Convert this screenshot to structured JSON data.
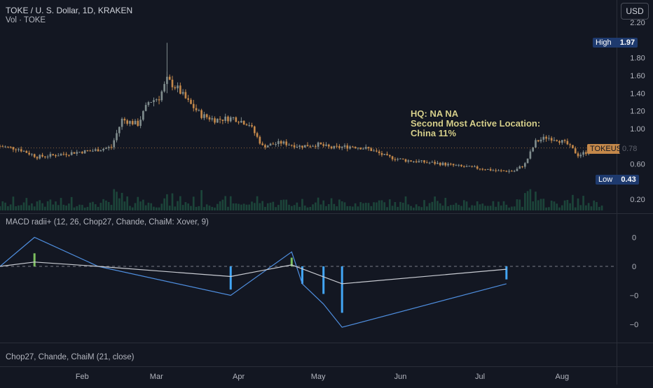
{
  "header": {
    "symbol_line": "TOKE / U. S. Dollar, 1D, KRAKEN",
    "volume_line": "Vol · TOKE"
  },
  "currency_button": "USD",
  "price_axis": {
    "ticks": [
      "2.20",
      "1.80",
      "1.60",
      "1.40",
      "1.20",
      "1.00",
      "0.60",
      "0.20"
    ],
    "high_label": "High",
    "high_value": "1.97",
    "low_label": "Low",
    "low_value": "0.43",
    "symbol_tag": "TOKEUSD",
    "last_value": "0.78"
  },
  "annotation": {
    "line1": "HQ: NA NA",
    "line2": "Second Most Active Location:",
    "line3": "China 11%"
  },
  "macd_pane": {
    "title": "MACD radii+ (12, 26, Chop27, Chande, ChaiM: Xover, 9)",
    "ticks": [
      "0",
      "0",
      "−0",
      "−0"
    ]
  },
  "chop_pane": {
    "title": "Chop27, Chande, ChaiM (21, close)"
  },
  "time_axis": {
    "labels": [
      "Feb",
      "Mar",
      "Apr",
      "May",
      "Jun",
      "Jul",
      "Aug"
    ]
  },
  "colors": {
    "background": "#131722",
    "up": "#7f8c8d",
    "down": "#c4884a",
    "macd_line": "#4f8fe0",
    "signal_line": "#c9ccd3",
    "hist_neg": "#42a5f5",
    "hist_pos": "#7cbf5f",
    "volume": "#1f4d3e"
  },
  "chart_data": [
    {
      "type": "candlestick",
      "title": "TOKE / U. S. Dollar, 1D, KRAKEN",
      "ylim": [
        0.1,
        2.25
      ],
      "x_range": [
        "2023-01-01",
        "2023-08-21"
      ],
      "y_ticks": [
        2.2,
        1.8,
        1.6,
        1.4,
        1.2,
        1.0,
        0.6,
        0.2
      ],
      "high": 1.97,
      "low": 0.43,
      "last": 0.78,
      "close_path": [
        [
          "2023-01-01",
          0.8
        ],
        [
          "2023-01-08",
          0.77
        ],
        [
          "2023-01-15",
          0.68
        ],
        [
          "2023-01-22",
          0.7
        ],
        [
          "2023-01-29",
          0.73
        ],
        [
          "2023-02-05",
          0.75
        ],
        [
          "2023-02-12",
          0.79
        ],
        [
          "2023-02-16",
          1.1
        ],
        [
          "2023-02-22",
          1.05
        ],
        [
          "2023-02-26",
          1.3
        ],
        [
          "2023-03-02",
          1.35
        ],
        [
          "2023-03-05",
          1.55
        ],
        [
          "2023-03-09",
          1.45
        ],
        [
          "2023-03-13",
          1.3
        ],
        [
          "2023-03-18",
          1.15
        ],
        [
          "2023-03-23",
          1.1
        ],
        [
          "2023-03-30",
          1.12
        ],
        [
          "2023-04-05",
          1.05
        ],
        [
          "2023-04-10",
          0.8
        ],
        [
          "2023-04-17",
          0.84
        ],
        [
          "2023-04-24",
          0.8
        ],
        [
          "2023-05-01",
          0.82
        ],
        [
          "2023-05-06",
          0.78
        ],
        [
          "2023-05-14",
          0.8
        ],
        [
          "2023-05-20",
          0.77
        ],
        [
          "2023-05-27",
          0.68
        ],
        [
          "2023-06-03",
          0.64
        ],
        [
          "2023-06-10",
          0.62
        ],
        [
          "2023-06-17",
          0.6
        ],
        [
          "2023-06-24",
          0.57
        ],
        [
          "2023-07-01",
          0.55
        ],
        [
          "2023-07-08",
          0.52
        ],
        [
          "2023-07-14",
          0.52
        ],
        [
          "2023-07-18",
          0.6
        ],
        [
          "2023-07-22",
          0.85
        ],
        [
          "2023-07-26",
          0.9
        ],
        [
          "2023-07-30",
          0.88
        ],
        [
          "2023-08-03",
          0.82
        ],
        [
          "2023-08-07",
          0.7
        ],
        [
          "2023-08-12",
          0.75
        ],
        [
          "2023-08-16",
          0.78
        ]
      ]
    },
    {
      "type": "line",
      "title": "MACD radii+ (12, 26, Chop27, Chande, ChaiM: Xover, 9)",
      "zero_line": true,
      "series": [
        {
          "values": [
            [
              -19,
              0
            ],
            [
              -6,
              1
            ],
            [
              18,
              0
            ],
            [
              68,
              -1
            ],
            [
              91,
              0.5
            ],
            [
              95,
              -0.6
            ],
            [
              103,
              -1.3
            ],
            [
              110,
              -2.1
            ],
            [
              172,
              -0.6
            ]
          ]
        },
        {
          "values": [
            [
              -19,
              0
            ],
            [
              -6,
              0.15
            ],
            [
              18,
              0
            ],
            [
              68,
              -0.35
            ],
            [
              91,
              0.05
            ],
            [
              110,
              -0.6
            ],
            [
              172,
              -0.1
            ]
          ]
        }
      ],
      "bars": [
        [
          -6,
          0.45
        ],
        [
          68,
          -0.8
        ],
        [
          91,
          0.3
        ],
        [
          95,
          -0.6
        ],
        [
          103,
          -0.95
        ],
        [
          110,
          -1.6
        ],
        [
          172,
          -0.45
        ]
      ]
    }
  ]
}
